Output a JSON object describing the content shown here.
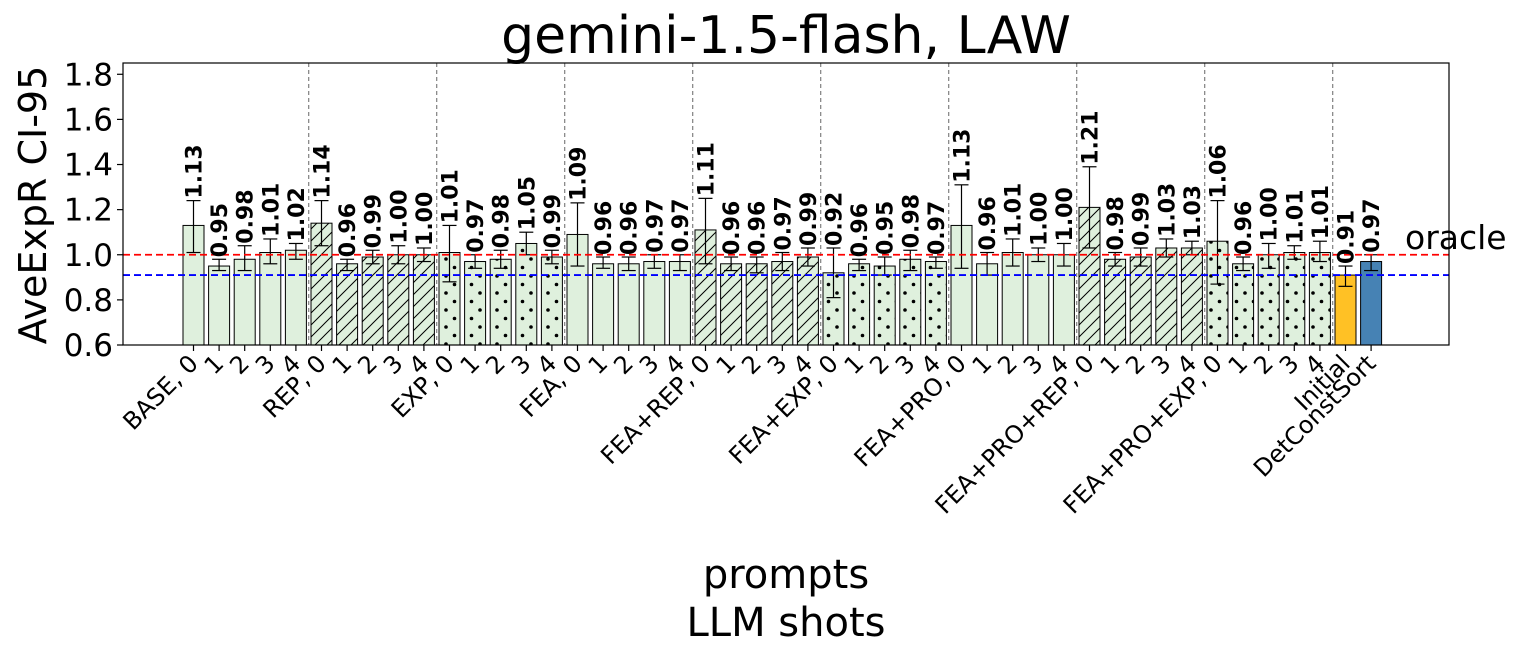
{
  "chart_data": {
    "type": "bar",
    "title": "gemini-1.5-flash, LAW",
    "ylabel": "AveExpR CI-95",
    "xlabel_lines": [
      "prompts",
      "LLM shots"
    ],
    "ylim": [
      0.6,
      1.85
    ],
    "yticks": [
      0.6,
      0.8,
      1.0,
      1.2,
      1.4,
      1.6,
      1.8
    ],
    "ytick_labels": [
      "0.6",
      "0.8",
      "1.0",
      "1.2",
      "1.4",
      "1.6",
      "1.8"
    ],
    "categories": [
      "BASE, 0",
      "1",
      "2",
      "3",
      "4",
      "REP, 0",
      "1",
      "2",
      "3",
      "4",
      "EXP, 0",
      "1",
      "2",
      "3",
      "4",
      "FEA, 0",
      "1",
      "2",
      "3",
      "4",
      "FEA+REP, 0",
      "1",
      "2",
      "3",
      "4",
      "FEA+EXP, 0",
      "1",
      "2",
      "3",
      "4",
      "FEA+PRO, 0",
      "1",
      "2",
      "3",
      "4",
      "FEA+PRO+REP, 0",
      "1",
      "2",
      "3",
      "4",
      "FEA+PRO+EXP, 0",
      "1",
      "2",
      "3",
      "4",
      "Initial",
      "DetConstSort"
    ],
    "values": [
      1.13,
      0.95,
      0.98,
      1.01,
      1.02,
      1.14,
      0.96,
      0.99,
      1.0,
      1.0,
      1.01,
      0.97,
      0.98,
      1.05,
      0.99,
      1.09,
      0.96,
      0.96,
      0.97,
      0.97,
      1.11,
      0.96,
      0.96,
      0.97,
      0.99,
      0.92,
      0.96,
      0.95,
      0.98,
      0.97,
      1.13,
      0.96,
      1.01,
      1.0,
      1.0,
      1.21,
      0.98,
      0.99,
      1.03,
      1.03,
      1.06,
      0.96,
      1.0,
      1.01,
      1.01,
      0.91,
      0.97
    ],
    "value_labels": [
      "1.13",
      "0.95",
      "0.98",
      "1.01",
      "1.02",
      "1.14",
      "0.96",
      "0.99",
      "1.00",
      "1.00",
      "1.01",
      "0.97",
      "0.98",
      "1.05",
      "0.99",
      "1.09",
      "0.96",
      "0.96",
      "0.97",
      "0.97",
      "1.11",
      "0.96",
      "0.96",
      "0.97",
      "0.99",
      "0.92",
      "0.96",
      "0.95",
      "0.98",
      "0.97",
      "1.13",
      "0.96",
      "1.01",
      "1.00",
      "1.00",
      "1.21",
      "0.98",
      "0.99",
      "1.03",
      "1.03",
      "1.06",
      "0.96",
      "1.00",
      "1.01",
      "1.01",
      "0.91",
      "0.97"
    ],
    "err_low": [
      1.01,
      0.93,
      0.93,
      0.96,
      0.98,
      1.04,
      0.93,
      0.96,
      0.96,
      0.97,
      0.88,
      0.94,
      0.94,
      1.0,
      0.96,
      0.95,
      0.94,
      0.93,
      0.94,
      0.93,
      0.96,
      0.93,
      0.92,
      0.93,
      0.95,
      0.81,
      0.93,
      0.91,
      0.93,
      0.94,
      0.94,
      0.91,
      0.95,
      0.97,
      0.95,
      1.03,
      0.95,
      0.95,
      0.99,
      1.0,
      0.87,
      0.93,
      0.94,
      0.98,
      0.97,
      0.86,
      0.93
    ],
    "err_high": [
      1.24,
      0.98,
      1.04,
      1.07,
      1.05,
      1.24,
      0.98,
      1.02,
      1.04,
      1.03,
      1.13,
      1.0,
      1.02,
      1.1,
      1.02,
      1.23,
      0.99,
      0.99,
      1.0,
      1.0,
      1.25,
      0.99,
      0.99,
      1.01,
      1.03,
      1.03,
      0.98,
      0.99,
      1.02,
      0.99,
      1.31,
      1.01,
      1.07,
      1.03,
      1.05,
      1.39,
      1.01,
      1.03,
      1.07,
      1.06,
      1.24,
      0.99,
      1.05,
      1.04,
      1.06,
      0.95,
      1.0
    ],
    "patterns": [
      "none",
      "none",
      "none",
      "none",
      "none",
      "hatch",
      "hatch",
      "hatch",
      "hatch",
      "hatch",
      "dots",
      "dots",
      "dots",
      "dots",
      "dots",
      "none",
      "none",
      "none",
      "none",
      "none",
      "hatch",
      "hatch",
      "hatch",
      "hatch",
      "hatch",
      "dots",
      "dots",
      "dots",
      "dots",
      "dots",
      "none",
      "none",
      "none",
      "none",
      "none",
      "hatch",
      "hatch",
      "hatch",
      "hatch",
      "hatch",
      "dots",
      "dots",
      "dots",
      "dots",
      "dots",
      "none",
      "none"
    ],
    "bar_colors": {
      "default": "#dff0dd",
      "initial": "#ffc125",
      "detconstsort": "#4682b4",
      "edge": "#000000"
    },
    "reference_lines": [
      {
        "name": "oracle",
        "value": 1.0,
        "color": "#ff0000",
        "label": "oracle"
      },
      {
        "name": "baseline",
        "value": 0.91,
        "color": "#0000ff",
        "label": ""
      }
    ],
    "group_separators_after_index": [
      4,
      9,
      14,
      19,
      24,
      29,
      34,
      39,
      44
    ],
    "grid": false
  }
}
